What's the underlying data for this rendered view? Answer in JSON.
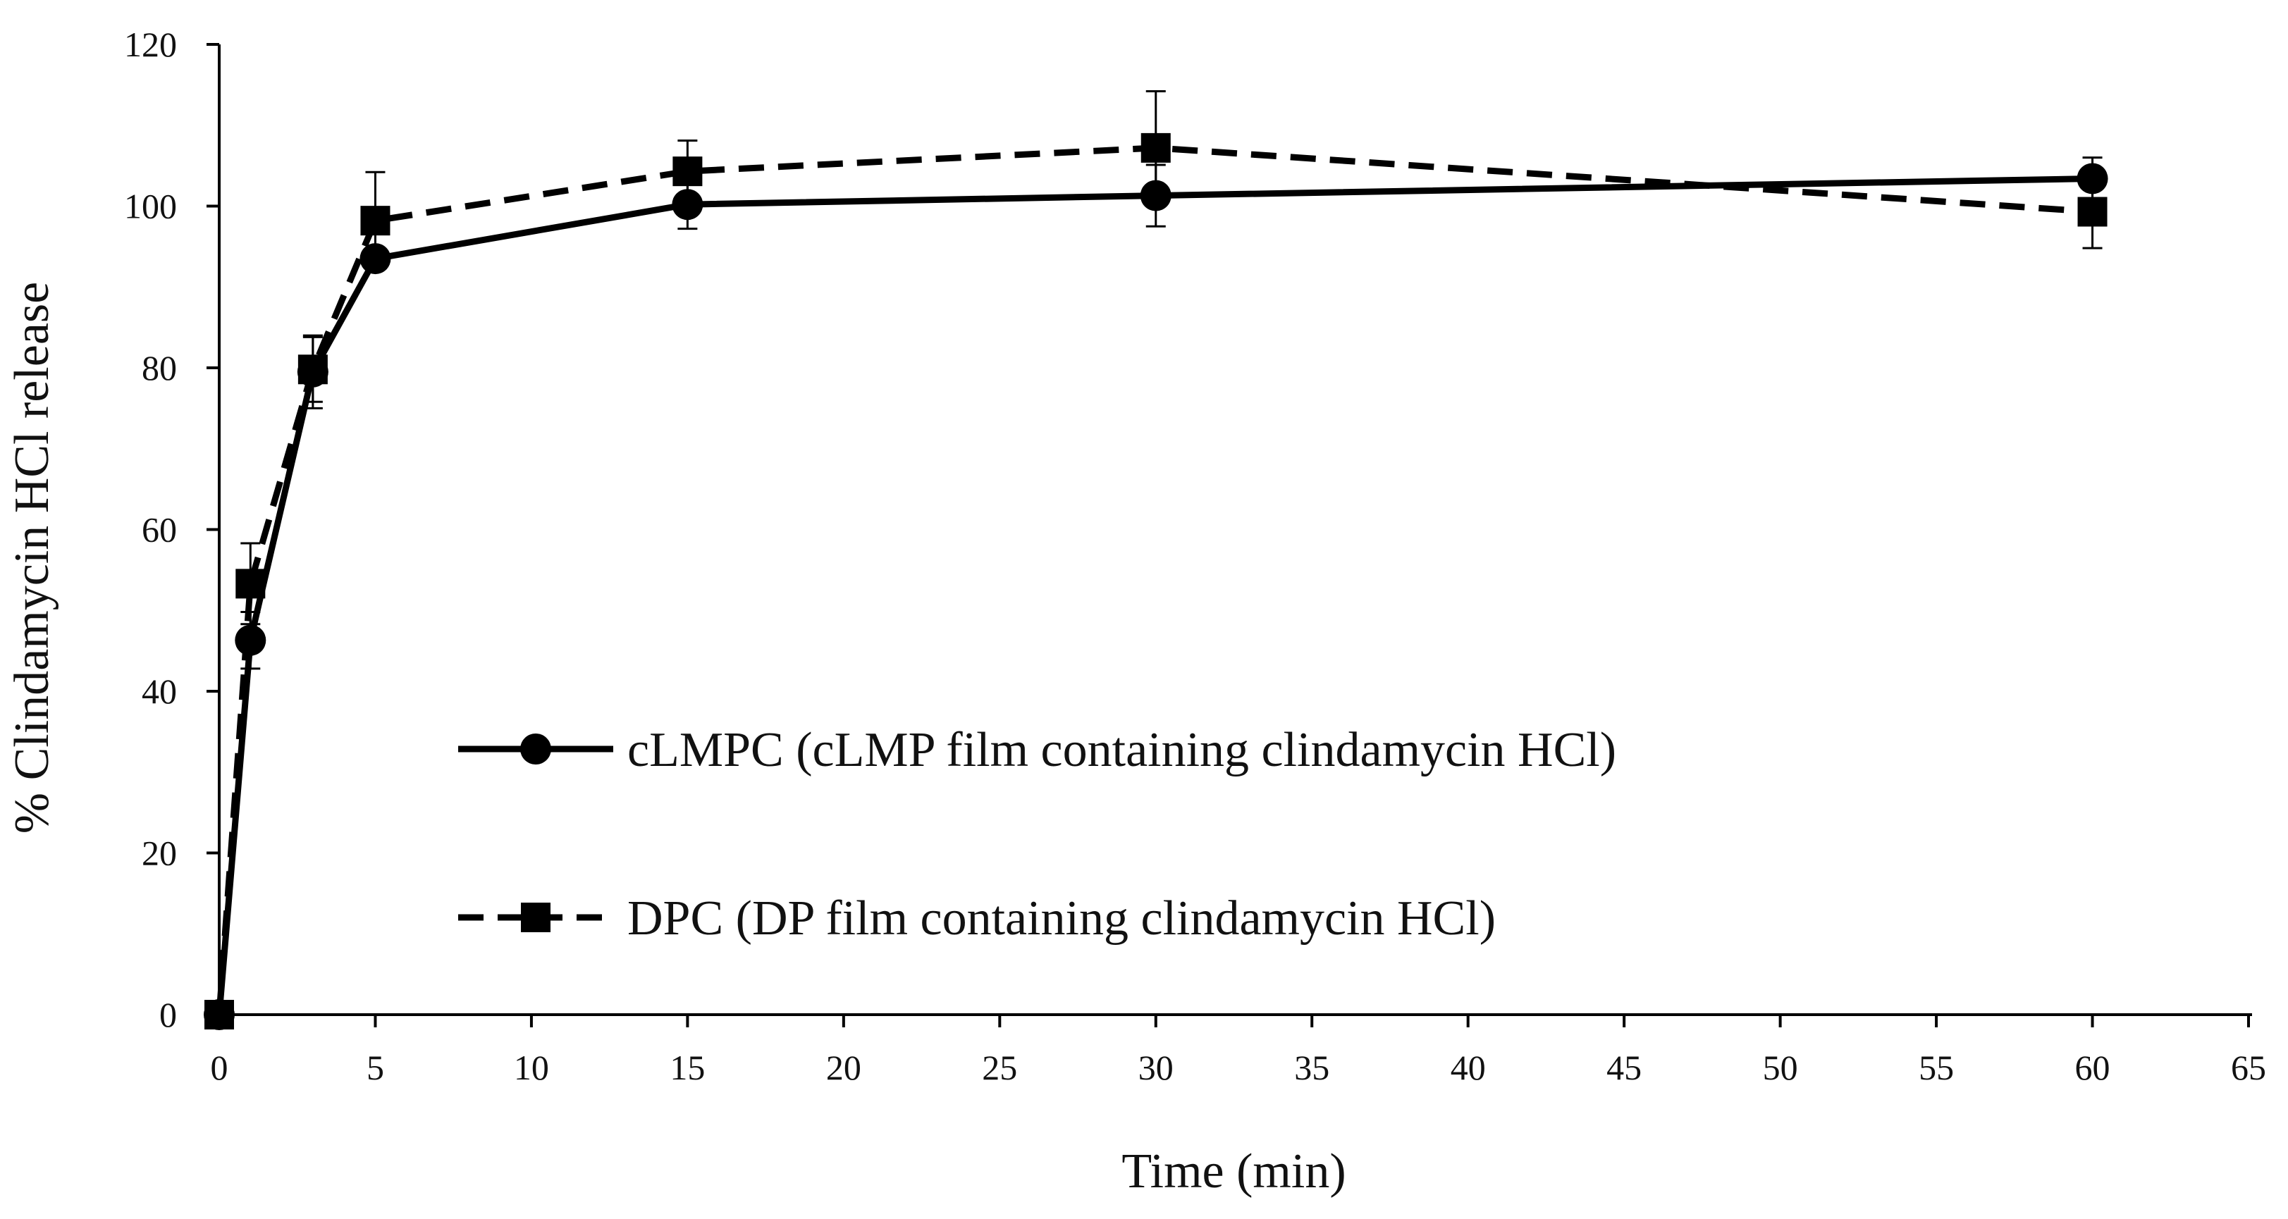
{
  "chart_data": {
    "type": "line",
    "title": "",
    "xlabel": "Time (min)",
    "ylabel": "% Clindamycin HCl release",
    "xlim": [
      0,
      65
    ],
    "ylim": [
      0,
      120
    ],
    "xticks": [
      0,
      5,
      10,
      15,
      20,
      25,
      30,
      35,
      40,
      45,
      50,
      55,
      60,
      65
    ],
    "yticks": [
      0,
      20,
      40,
      60,
      80,
      100,
      120
    ],
    "grid": false,
    "legend_position": "center-left",
    "series": [
      {
        "name": "cLMPC (cLMP film containing clindamycin HCl)",
        "marker": "circle",
        "line_style": "solid",
        "color": "#000000",
        "x": [
          0,
          1,
          3,
          5,
          15,
          30,
          60
        ],
        "y": [
          0,
          46.3,
          79.5,
          93.5,
          100.2,
          101.3,
          103.4
        ],
        "error": [
          0,
          3.5,
          4.5,
          1.0,
          3.0,
          3.8,
          2.6
        ]
      },
      {
        "name": "DPC (DP film containing clindamycin HCl)",
        "marker": "square",
        "line_style": "dashed",
        "color": "#000000",
        "x": [
          0,
          1,
          3,
          5,
          15,
          30,
          60
        ],
        "y": [
          0,
          53.3,
          79.8,
          98.2,
          104.3,
          107.2,
          99.3
        ],
        "error": [
          0,
          5.0,
          4.0,
          6.0,
          3.8,
          7.0,
          4.5
        ]
      }
    ]
  }
}
